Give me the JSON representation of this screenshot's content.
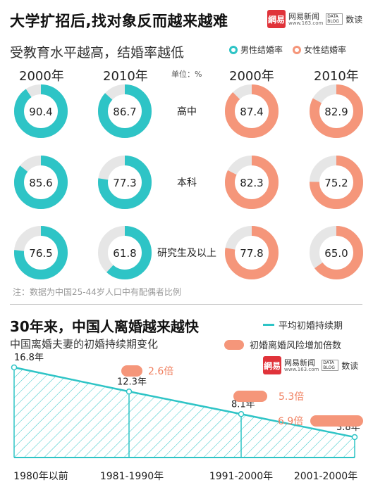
{
  "header": {
    "title": "大学扩招后,找对象反而越来越难",
    "subtitle": "受教育水平越高，结婚率越低"
  },
  "logo": {
    "mark": "網易",
    "name": "网易新闻",
    "url": "www.163.com",
    "badge": "DATA BLOG",
    "dushu": "数读"
  },
  "legend1": {
    "male": "男性结婚率",
    "female": "女性结婚率",
    "male_color": "#2ec4c6",
    "female_color": "#f5967a"
  },
  "unit_label": "单位：%",
  "note": "注：数据为中国25-44岁人口中有配偶者比例",
  "section2": {
    "title": "30年来，中国人离婚越来越快",
    "subtitle": "中国离婚夫妻的初婚持续期变化",
    "legend_line": "平均初婚持续期",
    "legend_bar": "初婚离婚风险增加倍数"
  },
  "chart_data": [
    {
      "type": "donut",
      "title": "受教育水平越高，结婚率越低",
      "unit": "单位：%",
      "columns": [
        {
          "year": "2000年",
          "group": "男性结婚率"
        },
        {
          "year": "2010年",
          "group": "男性结婚率"
        },
        {
          "year": "2000年",
          "group": "女性结婚率"
        },
        {
          "year": "2010年",
          "group": "女性结婚率"
        }
      ],
      "rows": [
        {
          "label": "高中",
          "values": [
            90.4,
            86.7,
            87.4,
            82.9
          ]
        },
        {
          "label": "本科",
          "values": [
            85.6,
            77.3,
            82.3,
            75.2
          ]
        },
        {
          "label": "研究生及以上",
          "values": [
            76.5,
            61.8,
            77.8,
            65.0
          ]
        }
      ],
      "colors": {
        "male": "#2ec4c6",
        "female": "#f5967a",
        "track": "#e6e6e6"
      }
    },
    {
      "type": "area",
      "title": "中国离婚夫妻的初婚持续期变化",
      "categories": [
        "1980年以前",
        "1981-1990年",
        "1991-2000年",
        "2001-2000年"
      ],
      "series": [
        {
          "name": "平均初婚持续期",
          "values": [
            16.8,
            12.3,
            8.1,
            3.8
          ],
          "labels": [
            "16.8年",
            "12.3年",
            "8.1年",
            "3.8年"
          ]
        },
        {
          "name": "初婚离婚风险增加倍数",
          "values": [
            null,
            2.6,
            5.3,
            6.9
          ],
          "labels": [
            "",
            "2.6倍",
            "5.3倍",
            "6.9倍"
          ]
        }
      ],
      "colors": {
        "line": "#2ec4c6",
        "bar": "#f5967a",
        "label": "#f08060"
      }
    }
  ]
}
